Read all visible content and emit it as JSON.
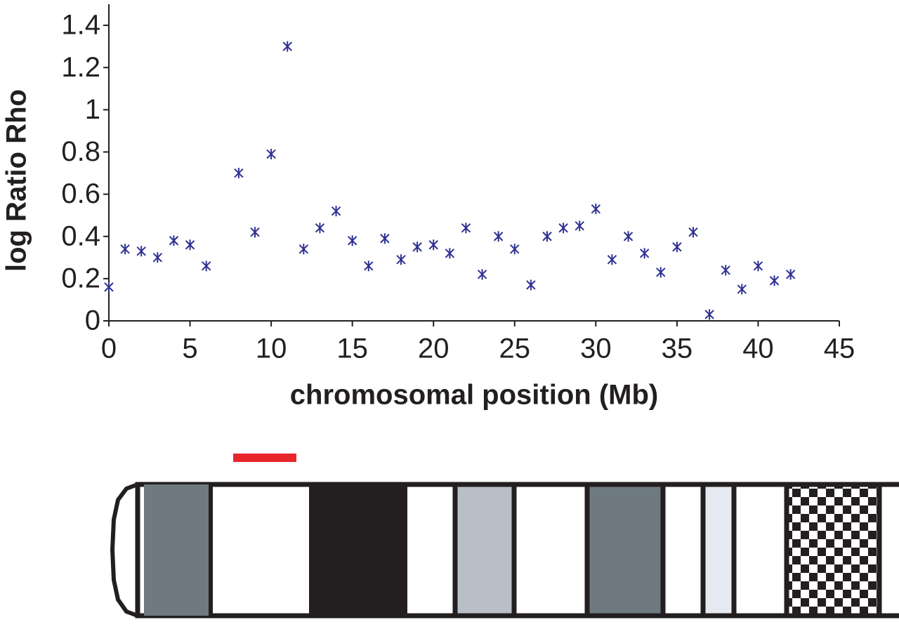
{
  "chart_data": {
    "type": "scatter",
    "xlabel": "chromosomal position (Mb)",
    "ylabel": "log Ratio Rho",
    "xlim": [
      0,
      45
    ],
    "xticks": [
      0,
      5,
      10,
      15,
      20,
      25,
      30,
      35,
      40,
      45
    ],
    "ylim": [
      0,
      1.5
    ],
    "yticks": [
      0,
      0.2,
      0.4,
      0.6,
      0.8,
      1,
      1.2,
      1.4
    ],
    "grid": false,
    "series": [
      {
        "color": "#2e3192",
        "x": [
          0,
          1,
          2,
          3,
          4,
          5,
          6,
          8,
          9,
          10,
          11,
          12,
          13,
          14,
          15,
          16,
          17,
          18,
          19,
          20,
          21,
          22,
          23,
          24,
          25,
          26,
          27,
          28,
          29,
          30,
          31,
          32,
          33,
          34,
          35,
          36,
          37,
          38,
          39,
          40,
          41,
          42
        ],
        "values": [
          0.16,
          0.34,
          0.33,
          0.3,
          0.38,
          0.36,
          0.26,
          0.7,
          0.42,
          0.79,
          1.3,
          0.34,
          0.44,
          0.52,
          0.38,
          0.26,
          0.39,
          0.29,
          0.35,
          0.36,
          0.32,
          0.44,
          0.22,
          0.4,
          0.34,
          0.17,
          0.4,
          0.44,
          0.45,
          0.53,
          0.29,
          0.4,
          0.32,
          0.23,
          0.35,
          0.42,
          0.03,
          0.24,
          0.15,
          0.26,
          0.19,
          0.22
        ]
      }
    ]
  }
}
